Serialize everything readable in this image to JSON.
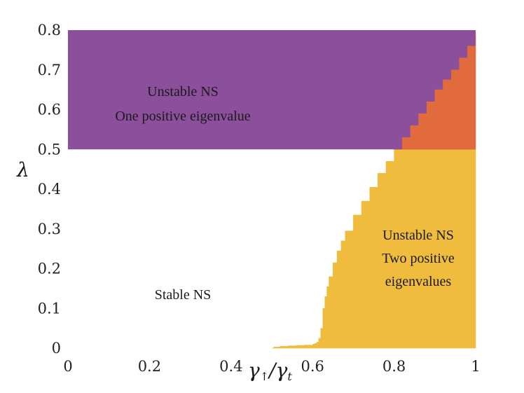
{
  "chart_data": {
    "type": "area",
    "xlabel": "γ↑/γt",
    "ylabel": "λ",
    "xlim": [
      0,
      1
    ],
    "ylim": [
      0,
      0.8
    ],
    "x_ticks": [
      "0",
      "0.2",
      "0.4",
      "0.6",
      "0.8",
      "1"
    ],
    "y_ticks": [
      "0",
      "0.1",
      "0.2",
      "0.3",
      "0.4",
      "0.5",
      "0.6",
      "0.7",
      "0.8"
    ],
    "grid": false,
    "lambda_threshold": 0.5,
    "boundary": {
      "x": [
        0.5,
        0.505,
        0.52,
        0.54,
        0.56,
        0.58,
        0.6,
        0.605,
        0.61,
        0.615,
        0.62,
        0.625,
        0.63,
        0.635,
        0.64,
        0.65,
        0.66,
        0.67,
        0.68,
        0.7,
        0.72,
        0.74,
        0.76,
        0.78,
        0.8,
        0.82,
        0.84,
        0.86,
        0.88,
        0.9,
        0.92,
        0.94,
        0.96,
        0.98,
        1.0
      ],
      "y": [
        0,
        0.003,
        0.005,
        0.006,
        0.007,
        0.008,
        0.01,
        0.012,
        0.015,
        0.025,
        0.05,
        0.1,
        0.13,
        0.155,
        0.18,
        0.215,
        0.245,
        0.27,
        0.295,
        0.335,
        0.37,
        0.405,
        0.44,
        0.47,
        0.5,
        0.53,
        0.56,
        0.59,
        0.62,
        0.65,
        0.675,
        0.7,
        0.73,
        0.76,
        0.79
      ]
    },
    "regions": [
      {
        "name": "Unstable NS One positive eigenvalue",
        "color": "#8c4f9c",
        "lines": [
          "Unstable NS",
          "One positive eigenvalue"
        ]
      },
      {
        "name": "Unstable NS Two positive eigenvalues",
        "color": "#f0bc3e",
        "lines": [
          "Unstable NS",
          "Two positive",
          "eigenvalues"
        ]
      },
      {
        "name": "overlap",
        "color": "#e16b3c",
        "lines": []
      },
      {
        "name": "Stable NS",
        "color": "#ffffff",
        "lines": [
          "Stable NS"
        ]
      }
    ]
  }
}
